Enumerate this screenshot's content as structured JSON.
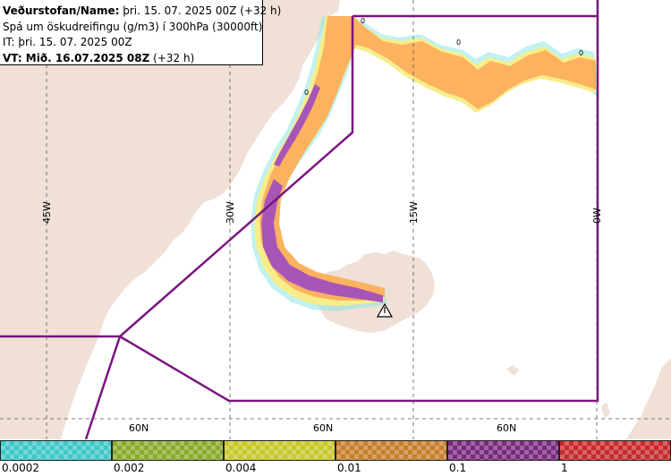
{
  "header": {
    "line1_bold": "Veðurstofan/Name:",
    "line1_rest": " þri. 15. 07. 2025 00Z (+32 h)",
    "line2": "Spá um öskudreifingu (g/m3) í 300hPa (30000ft)",
    "line3": "IT: þri. 15. 07. 2025 00Z",
    "line4_bold": "VT: Mið. 16.07.2025 08Z",
    "line4_rest": " (+32 h)"
  },
  "map": {
    "lon_labels": [
      "45W",
      "30W",
      "15W",
      "0W"
    ],
    "lat_labels": [
      "60N",
      "60N",
      "60N"
    ],
    "contour_labels": [
      "0",
      "0",
      "0",
      "0"
    ],
    "colors": {
      "land": "#f0e0d6",
      "sea": "#ffffff",
      "plume_orange": "#fcb25e",
      "plume_purple": "#a855b8",
      "plume_edge": "#f5ee8a",
      "plume_cyan": "#8ee6e6",
      "boundary": "#7a1580",
      "grid": "#555555"
    }
  },
  "legend": {
    "items": [
      {
        "label": "0.0002",
        "color": "#3ec8c8"
      },
      {
        "label": "0.002",
        "color": "#8aaa2a"
      },
      {
        "label": "0.004",
        "color": "#c8c82a"
      },
      {
        "label": "0.01",
        "color": "#c87e2a"
      },
      {
        "label": "0.1",
        "color": "#7a2a7e"
      },
      {
        "label": "1",
        "color": "#c82a2a"
      }
    ]
  }
}
